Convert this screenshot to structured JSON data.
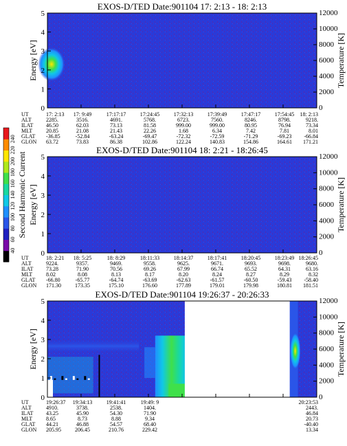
{
  "colorbar": {
    "label": "Second Harmonic Current",
    "ticks": [
      "40",
      "60",
      "80",
      "100",
      "120",
      "140",
      "160",
      "180",
      "200",
      "220",
      "240"
    ],
    "colors": [
      "#000000",
      "#7a0aa8",
      "#2020c0",
      "#2a55e8",
      "#1f8fff",
      "#10c8e6",
      "#19d8a0",
      "#3fe04a",
      "#aee81a",
      "#ffe600",
      "#ff8c00",
      "#e8181c"
    ]
  },
  "chart_data": [
    {
      "type": "heatmap",
      "title": "EXOS-D/TED   Date:901104  17: 2:13 - 18: 2:13",
      "ylabel": "Energy [eV]",
      "y2label": "Temperature [K]",
      "ylim": [
        0,
        5
      ],
      "y_ticks": [
        "0",
        "1",
        "2",
        "3",
        "4",
        "5"
      ],
      "y2lim": [
        0,
        12000
      ],
      "y2_ticks": [
        "0",
        "2000",
        "4000",
        "6000",
        "8000",
        "10000",
        "12000"
      ],
      "background": "#2a3ad8",
      "features": [
        {
          "x": [
            0.0,
            0.04
          ],
          "energy": [
            1.4,
            3.2
          ],
          "peak": 2.3,
          "level": "high"
        }
      ],
      "table": {
        "labels": [
          "UT",
          "ALT",
          "ILAT",
          "MLT",
          "GLAT",
          "GLON"
        ],
        "columns": [
          [
            "17: 2:13",
            "2285.",
            "46.50",
            "20.85",
            "-36.85",
            "63.72"
          ],
          [
            "17: 9:49",
            "3516.",
            "62.03",
            "21.08",
            "-52.84",
            "73.83"
          ],
          [
            "17:17:17",
            "4691.",
            "73.13",
            "21.43",
            "-63.24",
            "86.38"
          ],
          [
            "17:24:45",
            "5768.",
            "81.58",
            "22.26",
            "-69.47",
            "102.86"
          ],
          [
            "17:32:13",
            "6723.",
            "999.00",
            "1.68",
            "-72.32",
            "122.24"
          ],
          [
            "17:39:49",
            "7560.",
            "999.00",
            "6.34",
            "-72.59",
            "140.83"
          ],
          [
            "17:47:17",
            "8246.",
            "80.95",
            "7.42",
            "-71.29",
            "154.86"
          ],
          [
            "17:54:45",
            "8798.",
            "76.94",
            "7.81",
            "-69.23",
            "164.61"
          ],
          [
            "18: 2:13",
            "9218.",
            "73.34",
            "8.01",
            "-66.84",
            "171.21"
          ]
        ]
      }
    },
    {
      "type": "heatmap",
      "title": "EXOS-D/TED   Date:901104  18: 2:21 - 18:26:45",
      "ylabel": "Energy [eV]",
      "y2label": "Temperature [K]",
      "ylim": [
        0,
        5
      ],
      "y_ticks": [
        "0",
        "1",
        "2",
        "3",
        "4",
        "5"
      ],
      "y2lim": [
        0,
        12000
      ],
      "y2_ticks": [
        "0",
        "2000",
        "4000",
        "6000",
        "8000",
        "10000",
        "12000"
      ],
      "background": "#2a3ad8",
      "features": [],
      "table": {
        "labels": [
          "UT",
          "ALT",
          "ILAT",
          "MLT",
          "GLAT",
          "GLON"
        ],
        "columns": [
          [
            "18: 2:21",
            "9224.",
            "73.28",
            "8.02",
            "-66.80",
            "171.30"
          ],
          [
            "18: 5:25",
            "9357.",
            "71.90",
            "8.08",
            "-65.77",
            "173.35"
          ],
          [
            "18: 8:29",
            "9469.",
            "70.56",
            "8.13",
            "-64.74",
            "175.10"
          ],
          [
            "18:11:33",
            "9558.",
            "69.26",
            "8.17",
            "-63.69",
            "176.60"
          ],
          [
            "18:14:37",
            "9625.",
            "67.99",
            "8.20",
            "-62.63",
            "177.89"
          ],
          [
            "18:17:41",
            "9671.",
            "66.74",
            "8.24",
            "-61.57",
            "179.01"
          ],
          [
            "18:20:45",
            "9693.",
            "65.52",
            "8.27",
            "-60.50",
            "179.98"
          ],
          [
            "18:23:49",
            "9698.",
            "64.31",
            "8.29",
            "-59.43",
            "180.81"
          ],
          [
            "18:26:45",
            "9680.",
            "63.16",
            "8.32",
            "-58.40",
            "181.51"
          ]
        ]
      }
    },
    {
      "type": "heatmap",
      "title": "EXOS-D/TED   Date:901104  19:26:37 - 20:26:33",
      "ylabel": "Energy [eV]",
      "y2label": "Temperature [K]",
      "ylim": [
        0,
        5
      ],
      "y_ticks": [
        "0",
        "1",
        "2",
        "3",
        "4",
        "5"
      ],
      "y2lim": [
        0,
        12000
      ],
      "y2_ticks": [
        "0",
        "2000",
        "4000",
        "6000",
        "8000",
        "10000",
        "12000"
      ],
      "background": "#2a3ad8",
      "features": [
        {
          "x": [
            0.0,
            0.2
          ],
          "energy": [
            0.0,
            2.2
          ],
          "level": "mixed"
        },
        {
          "x": [
            0.4,
            0.51
          ],
          "energy": [
            0.0,
            3.2
          ],
          "level": "high"
        },
        {
          "x": [
            0.51,
            0.9
          ],
          "energy": [
            0.0,
            5.0
          ],
          "level": "nodata"
        },
        {
          "x": [
            0.9,
            0.93
          ],
          "energy": [
            1.4,
            3.4
          ],
          "level": "medium"
        }
      ],
      "table": {
        "labels": [
          "UT",
          "ALT",
          "ILAT",
          "MLT",
          "GLAT",
          "GLON"
        ],
        "columns": [
          [
            "19:26:37",
            "4910.",
            "43.25",
            "8.65",
            "44.21",
            "205.95"
          ],
          [
            "19:34:13",
            "3738.",
            "45.90",
            "8.73",
            "46.88",
            "206.45"
          ],
          [
            "19:41:41",
            "2538.",
            "54.30",
            "8.88",
            "54.57",
            "210.76"
          ],
          [
            "19:49: 9",
            "1404.",
            "71.90",
            "9.34",
            "68.40",
            "229.42"
          ],
          [
            "",
            "",
            "",
            "",
            "",
            ""
          ],
          [
            "",
            "",
            "",
            "",
            "",
            ""
          ],
          [
            "",
            "",
            "",
            "",
            "",
            ""
          ],
          [
            "",
            "",
            "",
            "",
            "",
            ""
          ],
          [
            "20:23:53",
            "2443.",
            "46.84",
            "20.73",
            "-40.40",
            "13.34"
          ]
        ]
      }
    }
  ]
}
